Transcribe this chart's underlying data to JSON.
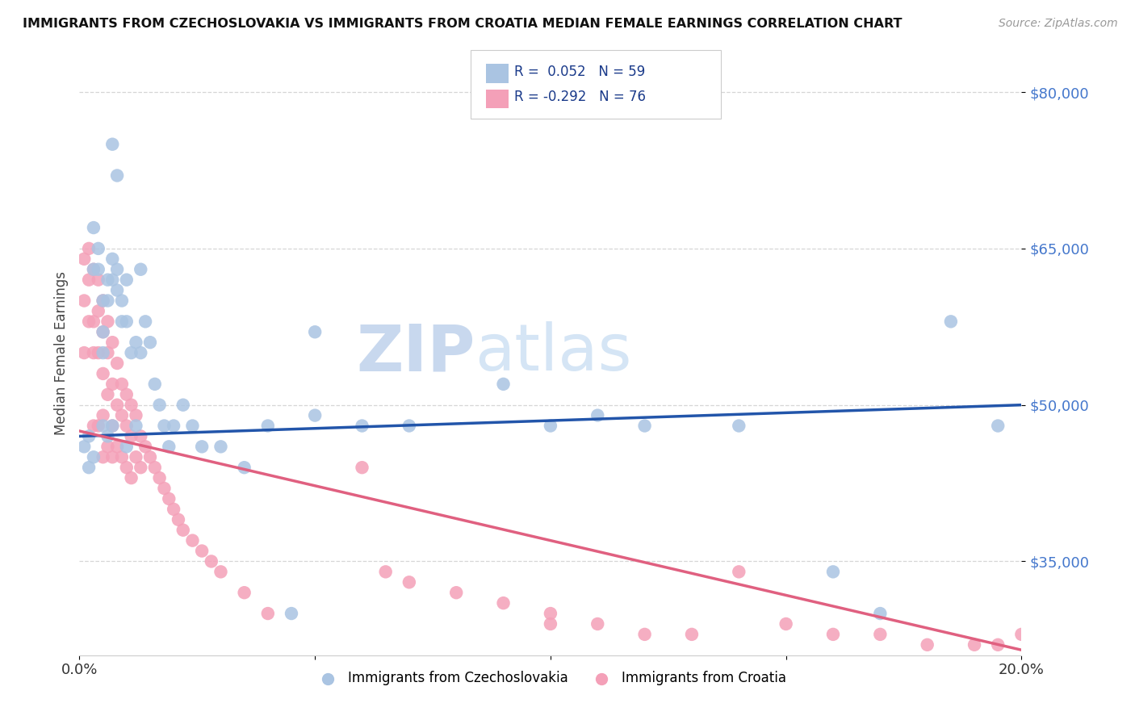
{
  "title": "IMMIGRANTS FROM CZECHOSLOVAKIA VS IMMIGRANTS FROM CROATIA MEDIAN FEMALE EARNINGS CORRELATION CHART",
  "source": "Source: ZipAtlas.com",
  "ylabel": "Median Female Earnings",
  "x_min": 0.0,
  "x_max": 0.2,
  "y_min": 26000,
  "y_max": 84000,
  "yticks": [
    35000,
    50000,
    65000,
    80000
  ],
  "ytick_labels": [
    "$35,000",
    "$50,000",
    "$65,000",
    "$80,000"
  ],
  "xticks": [
    0.0,
    0.05,
    0.1,
    0.15,
    0.2
  ],
  "xtick_labels": [
    "0.0%",
    "",
    "",
    "",
    "20.0%"
  ],
  "series1_label": "Immigrants from Czechoslovakia",
  "series1_R": "0.052",
  "series1_N": "59",
  "series1_color": "#aac4e2",
  "series1_line_color": "#2255aa",
  "series2_label": "Immigrants from Croatia",
  "series2_R": "-0.292",
  "series2_N": "76",
  "series2_color": "#f4a0b8",
  "series2_line_color": "#e06080",
  "watermark_zip": "ZIP",
  "watermark_atlas": "atlas",
  "watermark_color": "#d0dff0",
  "background_color": "#ffffff",
  "legend_color": "#1a3a8a",
  "trendline1_x0": 0.0,
  "trendline1_y0": 47000,
  "trendline1_x1": 0.2,
  "trendline1_y1": 50000,
  "trendline2_x0": 0.0,
  "trendline2_y0": 47500,
  "trendline2_x1": 0.2,
  "trendline2_y1": 26500,
  "series1_x": [
    0.001,
    0.002,
    0.002,
    0.003,
    0.003,
    0.003,
    0.004,
    0.004,
    0.005,
    0.005,
    0.005,
    0.005,
    0.006,
    0.006,
    0.006,
    0.007,
    0.007,
    0.007,
    0.008,
    0.008,
    0.009,
    0.009,
    0.01,
    0.01,
    0.01,
    0.011,
    0.012,
    0.012,
    0.013,
    0.013,
    0.014,
    0.015,
    0.016,
    0.017,
    0.018,
    0.019,
    0.02,
    0.022,
    0.024,
    0.026,
    0.03,
    0.035,
    0.04,
    0.045,
    0.05,
    0.06,
    0.07,
    0.09,
    0.1,
    0.11,
    0.12,
    0.14,
    0.16,
    0.17,
    0.185,
    0.195,
    0.007,
    0.008,
    0.05
  ],
  "series1_y": [
    46000,
    44000,
    47000,
    63000,
    67000,
    45000,
    65000,
    63000,
    60000,
    57000,
    55000,
    48000,
    62000,
    60000,
    47000,
    64000,
    62000,
    48000,
    63000,
    61000,
    60000,
    58000,
    62000,
    58000,
    46000,
    55000,
    56000,
    48000,
    63000,
    55000,
    58000,
    56000,
    52000,
    50000,
    48000,
    46000,
    48000,
    50000,
    48000,
    46000,
    46000,
    44000,
    48000,
    30000,
    49000,
    48000,
    48000,
    52000,
    48000,
    49000,
    48000,
    48000,
    34000,
    30000,
    58000,
    48000,
    75000,
    72000,
    57000
  ],
  "series2_x": [
    0.001,
    0.001,
    0.001,
    0.002,
    0.002,
    0.002,
    0.003,
    0.003,
    0.003,
    0.003,
    0.004,
    0.004,
    0.004,
    0.004,
    0.005,
    0.005,
    0.005,
    0.005,
    0.005,
    0.006,
    0.006,
    0.006,
    0.006,
    0.007,
    0.007,
    0.007,
    0.007,
    0.008,
    0.008,
    0.008,
    0.009,
    0.009,
    0.009,
    0.01,
    0.01,
    0.01,
    0.011,
    0.011,
    0.011,
    0.012,
    0.012,
    0.013,
    0.013,
    0.014,
    0.015,
    0.016,
    0.017,
    0.018,
    0.019,
    0.02,
    0.021,
    0.022,
    0.024,
    0.026,
    0.028,
    0.03,
    0.035,
    0.04,
    0.06,
    0.065,
    0.07,
    0.08,
    0.09,
    0.1,
    0.1,
    0.11,
    0.12,
    0.13,
    0.14,
    0.15,
    0.16,
    0.17,
    0.18,
    0.19,
    0.195,
    0.2
  ],
  "series2_y": [
    64000,
    60000,
    55000,
    65000,
    62000,
    58000,
    63000,
    58000,
    55000,
    48000,
    62000,
    59000,
    55000,
    48000,
    60000,
    57000,
    53000,
    49000,
    45000,
    58000,
    55000,
    51000,
    46000,
    56000,
    52000,
    48000,
    45000,
    54000,
    50000,
    46000,
    52000,
    49000,
    45000,
    51000,
    48000,
    44000,
    50000,
    47000,
    43000,
    49000,
    45000,
    47000,
    44000,
    46000,
    45000,
    44000,
    43000,
    42000,
    41000,
    40000,
    39000,
    38000,
    37000,
    36000,
    35000,
    34000,
    32000,
    30000,
    44000,
    34000,
    33000,
    32000,
    31000,
    30000,
    29000,
    29000,
    28000,
    28000,
    34000,
    29000,
    28000,
    28000,
    27000,
    27000,
    27000,
    28000
  ]
}
